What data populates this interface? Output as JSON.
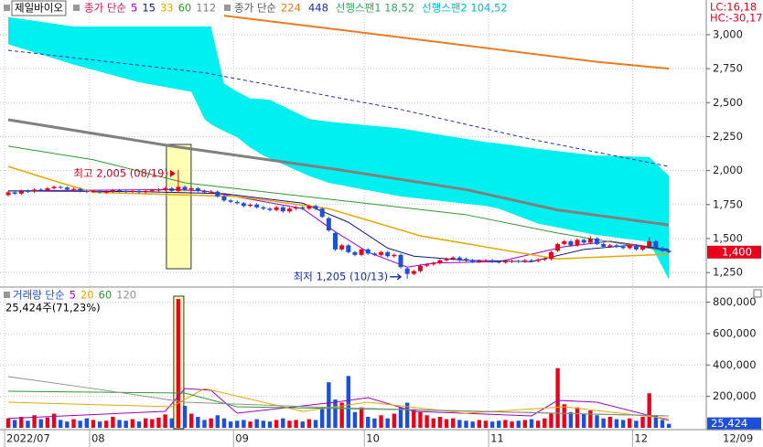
{
  "chart_data": [
    {
      "type": "candlestick",
      "title": "제일바이오",
      "up_color": "#e8001c",
      "down_color": "#1e4fd8",
      "grid": true,
      "ylim": [
        1150,
        3255
      ],
      "yticks": [
        {
          "value": 3000,
          "label": "3,000"
        },
        {
          "value": 2750,
          "label": "2,750"
        },
        {
          "value": 2500,
          "label": "2,500"
        },
        {
          "value": 2250,
          "label": "2,250"
        },
        {
          "value": 2000,
          "label": "2,000"
        },
        {
          "value": 1750,
          "label": "1,750"
        },
        {
          "value": 1500,
          "label": "1,500"
        },
        {
          "value": 1250,
          "label": "1,250"
        }
      ],
      "open": [
        1820,
        1840,
        1830,
        1850,
        1845,
        1860,
        1855,
        1870,
        1880,
        1875,
        1860,
        1865,
        1850,
        1845,
        1850,
        1840,
        1845,
        1855,
        1850,
        1845,
        1850,
        1840,
        1850,
        1855,
        1860,
        1870,
        1850,
        1880,
        1860,
        1870,
        1850,
        1840,
        1845,
        1810,
        1780,
        1770,
        1760,
        1740,
        1750,
        1730,
        1720,
        1710,
        1730,
        1700,
        1720,
        1730,
        1720,
        1740,
        1720,
        1650,
        1540,
        1420,
        1450,
        1400,
        1380,
        1420,
        1390,
        1380,
        1400,
        1370,
        1380,
        1280,
        1240,
        1260,
        1300,
        1310,
        1320,
        1340,
        1350,
        1360,
        1350,
        1340,
        1330,
        1335,
        1340,
        1330,
        1325,
        1330,
        1335,
        1330,
        1340,
        1335,
        1345,
        1350,
        1410,
        1460,
        1480,
        1450,
        1490,
        1470,
        1500,
        1460,
        1440,
        1450,
        1440,
        1430,
        1450,
        1420,
        1440,
        1480,
        1430,
        1410
      ],
      "high": [
        1850,
        1850,
        1860,
        1860,
        1870,
        1870,
        1880,
        1890,
        1890,
        1885,
        1875,
        1875,
        1860,
        1860,
        1860,
        1855,
        1865,
        1865,
        1860,
        1860,
        1860,
        1860,
        1865,
        1870,
        1880,
        1880,
        2005,
        1890,
        1880,
        1880,
        1860,
        1855,
        1855,
        1820,
        1790,
        1780,
        1770,
        1760,
        1760,
        1740,
        1730,
        1740,
        1740,
        1730,
        1740,
        1740,
        1750,
        1750,
        1730,
        1660,
        1550,
        1460,
        1460,
        1410,
        1430,
        1430,
        1400,
        1410,
        1410,
        1390,
        1390,
        1290,
        1270,
        1310,
        1320,
        1330,
        1350,
        1360,
        1370,
        1370,
        1360,
        1350,
        1345,
        1350,
        1350,
        1340,
        1340,
        1345,
        1345,
        1350,
        1350,
        1355,
        1360,
        1410,
        1470,
        1490,
        1490,
        1500,
        1500,
        1520,
        1510,
        1470,
        1460,
        1460,
        1450,
        1460,
        1460,
        1450,
        1510,
        1490,
        1440,
        1420
      ],
      "low": [
        1810,
        1820,
        1820,
        1835,
        1835,
        1845,
        1845,
        1860,
        1865,
        1850,
        1850,
        1840,
        1835,
        1835,
        1830,
        1830,
        1835,
        1840,
        1835,
        1835,
        1830,
        1830,
        1840,
        1845,
        1850,
        1840,
        1840,
        1850,
        1850,
        1840,
        1830,
        1830,
        1800,
        1770,
        1760,
        1750,
        1730,
        1730,
        1720,
        1710,
        1700,
        1700,
        1690,
        1690,
        1710,
        1710,
        1710,
        1710,
        1650,
        1550,
        1410,
        1410,
        1390,
        1370,
        1370,
        1380,
        1370,
        1370,
        1360,
        1360,
        1280,
        1205,
        1230,
        1250,
        1290,
        1300,
        1310,
        1330,
        1340,
        1330,
        1330,
        1320,
        1320,
        1325,
        1320,
        1315,
        1315,
        1320,
        1320,
        1320,
        1325,
        1325,
        1335,
        1340,
        1400,
        1450,
        1440,
        1440,
        1460,
        1460,
        1450,
        1430,
        1430,
        1430,
        1420,
        1420,
        1410,
        1410,
        1430,
        1420,
        1400,
        1390
      ],
      "close": [
        1840,
        1830,
        1850,
        1845,
        1860,
        1855,
        1870,
        1880,
        1875,
        1860,
        1865,
        1850,
        1845,
        1850,
        1840,
        1845,
        1855,
        1850,
        1845,
        1850,
        1840,
        1850,
        1855,
        1860,
        1870,
        1850,
        1880,
        1860,
        1870,
        1850,
        1840,
        1845,
        1810,
        1780,
        1770,
        1760,
        1740,
        1750,
        1730,
        1720,
        1710,
        1730,
        1700,
        1720,
        1730,
        1720,
        1740,
        1720,
        1660,
        1560,
        1420,
        1450,
        1400,
        1380,
        1420,
        1390,
        1380,
        1400,
        1370,
        1380,
        1290,
        1240,
        1260,
        1300,
        1310,
        1320,
        1340,
        1350,
        1360,
        1340,
        1340,
        1330,
        1335,
        1340,
        1330,
        1325,
        1330,
        1335,
        1330,
        1340,
        1335,
        1345,
        1350,
        1400,
        1460,
        1480,
        1450,
        1490,
        1470,
        1500,
        1460,
        1440,
        1450,
        1440,
        1430,
        1450,
        1420,
        1440,
        1480,
        1430,
        1410,
        1400
      ],
      "cloud": {
        "color": "#00f0f0",
        "x": [
          0,
          10,
          20,
          28,
          30,
          31,
          33,
          35,
          37,
          39,
          40,
          46,
          49,
          60,
          73,
          75,
          81,
          90,
          91,
          98,
          101
        ],
        "upper": [
          3130,
          3060,
          3060,
          3060,
          3060,
          3060,
          2640,
          2580,
          2530,
          2525,
          2520,
          2380,
          2360,
          2310,
          2210,
          2200,
          2160,
          2110,
          2110,
          2100,
          1960
        ],
        "lower": [
          2930,
          2780,
          2650,
          2580,
          2380,
          2340,
          2290,
          2245,
          2170,
          2110,
          2090,
          1960,
          1910,
          1810,
          1740,
          1720,
          1610,
          1525,
          1520,
          1475,
          1200
        ]
      },
      "ma_groups": [
        {
          "label": "종가 단순",
          "color": "#d4145a",
          "series": [
            {
              "name": "5",
              "color": "#a000c8",
              "width": 1,
              "x": [
                0,
                25,
                30,
                45,
                50,
                55,
                61,
                65,
                75,
                85,
                92,
                98,
                101
              ],
              "values": [
                1850,
                1860,
                1850,
                1720,
                1550,
                1400,
                1290,
                1320,
                1330,
                1440,
                1480,
                1440,
                1410
              ]
            },
            {
              "name": "15",
              "color": "#101880",
              "width": 1,
              "x": [
                0,
                20,
                33,
                45,
                52,
                58,
                62,
                70,
                80,
                88,
                95,
                101
              ],
              "values": [
                1850,
                1845,
                1830,
                1760,
                1620,
                1430,
                1370,
                1340,
                1330,
                1420,
                1450,
                1420
              ]
            },
            {
              "name": "33",
              "color": "#e6a800",
              "width": 1.5,
              "x": [
                0,
                8,
                13,
                35,
                49,
                63,
                77,
                84,
                101
              ],
              "values": [
                2030,
                1910,
                1840,
                1810,
                1720,
                1520,
                1405,
                1350,
                1385
              ]
            },
            {
              "name": "60",
              "color": "#2e9a2e",
              "width": 1,
              "x": [
                0,
                13,
                27,
                49,
                70,
                84,
                101
              ],
              "values": [
                2180,
                2080,
                1910,
                1790,
                1675,
                1540,
                1405
              ]
            },
            {
              "name": "112",
              "color": "#808080",
              "width": 3,
              "x": [
                0,
                25,
                50,
                70,
                84,
                101
              ],
              "values": [
                2374,
                2180,
                2010,
                1860,
                1710,
                1600
              ]
            }
          ]
        },
        {
          "label": "종가 단순",
          "color": "#555555",
          "series": [
            {
              "name": "224",
              "color": "#f07a1a",
              "width": 2,
              "x": [
                33,
                50,
                70,
                90,
                101
              ],
              "values": [
                3140,
                3040,
                2920,
                2800,
                2750
              ]
            },
            {
              "name": "448",
              "color": "#2030a0",
              "width": 1,
              "dash": true,
              "x": [
                0,
                30,
                60,
                80,
                101
              ],
              "values": [
                2885,
                2720,
                2450,
                2230,
                2030
              ]
            }
          ]
        }
      ],
      "spans": [
        {
          "text": "선행스팬1 18,52",
          "color": "#2eaa5a"
        },
        {
          "text": "선행스팬2 104,52",
          "color": "#00b8d0"
        }
      ],
      "last_price": {
        "value": 1400,
        "label": "1,400"
      },
      "high_note": {
        "text": "최고 2,005 (08/19)",
        "index": 26,
        "color": "#d0001c"
      },
      "low_note": {
        "text": "최저 1,205 (10/13)",
        "index": 61,
        "color": "#1030a0"
      },
      "highlight": 26,
      "lc": "LC:16,18",
      "hc": "HC:-30,17",
      "x_labels": [
        {
          "index": 0,
          "label": "2022/07"
        },
        {
          "index": 13,
          "label": "08"
        },
        {
          "index": 35,
          "label": "09"
        },
        {
          "index": 55,
          "label": "10"
        },
        {
          "index": 74,
          "label": "11"
        },
        {
          "index": 96,
          "label": "12"
        }
      ],
      "last_date": "12/09"
    },
    {
      "type": "bar",
      "title": "거래량 단순",
      "info": "25,424주(71,23%)",
      "ylim": [
        0,
        885000
      ],
      "grid": true,
      "yticks": [
        {
          "value": 800000,
          "label": "800,000"
        },
        {
          "value": 600000,
          "label": "600,000"
        },
        {
          "value": 400000,
          "label": "400,000"
        },
        {
          "value": 200000,
          "label": "200,000"
        }
      ],
      "values": [
        60000,
        50000,
        70000,
        45000,
        80000,
        55000,
        65000,
        90000,
        50000,
        40000,
        55000,
        45000,
        60000,
        50000,
        40000,
        45000,
        70000,
        50000,
        45000,
        55000,
        40000,
        60000,
        55000,
        65000,
        85000,
        60000,
        820000,
        140000,
        90000,
        70000,
        50000,
        60000,
        80000,
        60000,
        40000,
        45000,
        50000,
        40000,
        55000,
        45000,
        40000,
        50000,
        60000,
        45000,
        50000,
        40000,
        55000,
        50000,
        120000,
        290000,
        180000,
        160000,
        330000,
        100000,
        130000,
        70000,
        60000,
        80000,
        60000,
        90000,
        130000,
        160000,
        120000,
        100000,
        80000,
        60000,
        70000,
        55000,
        60000,
        50000,
        45000,
        40000,
        50000,
        45000,
        40000,
        45000,
        50000,
        40000,
        45000,
        50000,
        55000,
        45000,
        60000,
        90000,
        380000,
        150000,
        100000,
        130000,
        90000,
        110000,
        80000,
        60000,
        70000,
        55000,
        50000,
        60000,
        45000,
        70000,
        220000,
        80000,
        50000,
        25424
      ],
      "last": {
        "value": 25424,
        "label": "25,424"
      },
      "series": [
        {
          "name": "5",
          "color": "#a000c8",
          "x": [
            0,
            24,
            27,
            31,
            35,
            50,
            55,
            62,
            80,
            84,
            90,
            101
          ],
          "values": [
            60000,
            105000,
            250000,
            239000,
            93000,
            163000,
            192000,
            105000,
            76000,
            175000,
            163000,
            47000
          ]
        },
        {
          "name": "20",
          "color": "#e6a800",
          "x": [
            0,
            25,
            30,
            45,
            55,
            70,
            85,
            101
          ],
          "values": [
            163000,
            134000,
            250000,
            105000,
            163000,
            93000,
            134000,
            58000
          ]
        },
        {
          "name": "60",
          "color": "#2e9a2e",
          "x": [
            0,
            27,
            35,
            60,
            101
          ],
          "values": [
            233000,
            221000,
            134000,
            116000,
            76000
          ]
        },
        {
          "name": "120",
          "color": "#909090",
          "x": [
            0,
            13,
            27,
            50,
            101
          ],
          "values": [
            326000,
            250000,
            163000,
            128000,
            76000
          ]
        }
      ]
    }
  ]
}
